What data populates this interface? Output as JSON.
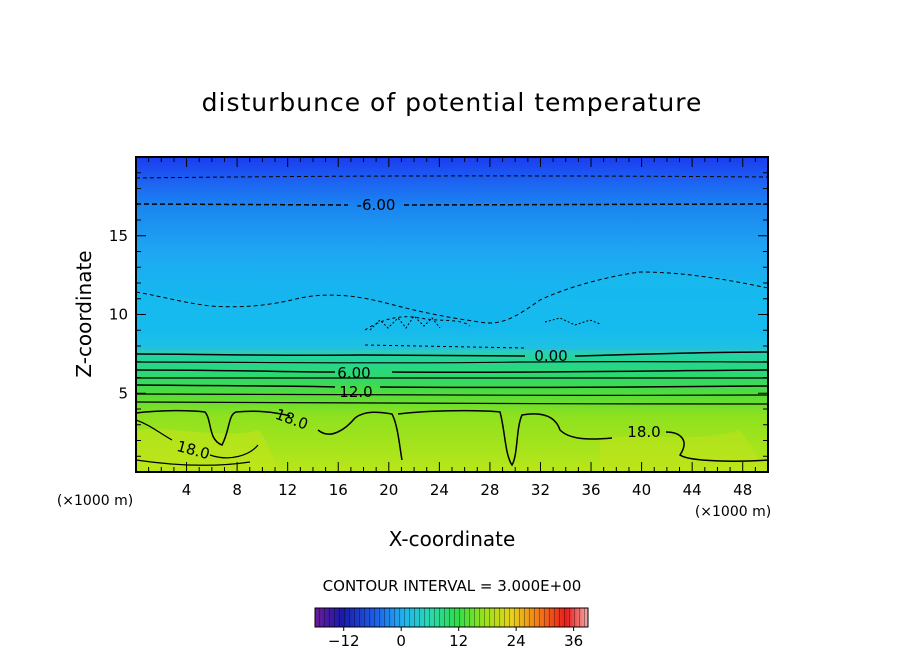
{
  "chart_data": {
    "type": "contour",
    "title": "disturbunce of potential temperature",
    "xlabel": "X-coordinate",
    "ylabel": "Z-coordinate",
    "x_unit": "(×1000 m)",
    "z_unit": "(×1000 m)",
    "xlim": [
      0,
      50
    ],
    "ylim": [
      0,
      20
    ],
    "x_ticks": [
      4,
      8,
      12,
      16,
      20,
      24,
      28,
      32,
      36,
      40,
      44,
      48
    ],
    "y_ticks": [
      5,
      10,
      15
    ],
    "contour_interval_text": "CONTOUR INTERVAL = 3.000E+00",
    "contour_interval": 3.0,
    "contour_labels": [
      "-6.00",
      "0.00",
      "6.00",
      "12.0",
      "18.0",
      "18.0",
      "18.0"
    ],
    "colorbar": {
      "range": [
        -18,
        39
      ],
      "ticks": [
        -12,
        0,
        12,
        24,
        36
      ]
    },
    "field_bands": [
      {
        "z_bottom": 18.5,
        "z_top": 20,
        "value": -9
      },
      {
        "z_bottom": 16.5,
        "z_top": 18.5,
        "value": -7
      },
      {
        "z_bottom": 13.5,
        "z_top": 16.5,
        "value": -4
      },
      {
        "z_bottom": 11.0,
        "z_top": 13.5,
        "value": -2
      },
      {
        "z_bottom": 7.5,
        "z_top": 11.0,
        "value": 0
      },
      {
        "z_bottom": 6.5,
        "z_top": 7.5,
        "value": 4
      },
      {
        "z_bottom": 5.5,
        "z_top": 6.5,
        "value": 8
      },
      {
        "z_bottom": 4.5,
        "z_top": 5.5,
        "value": 12
      },
      {
        "z_bottom": 3.5,
        "z_top": 4.5,
        "value": 16
      },
      {
        "z_bottom": 0,
        "z_top": 3.5,
        "value": 19
      }
    ]
  }
}
